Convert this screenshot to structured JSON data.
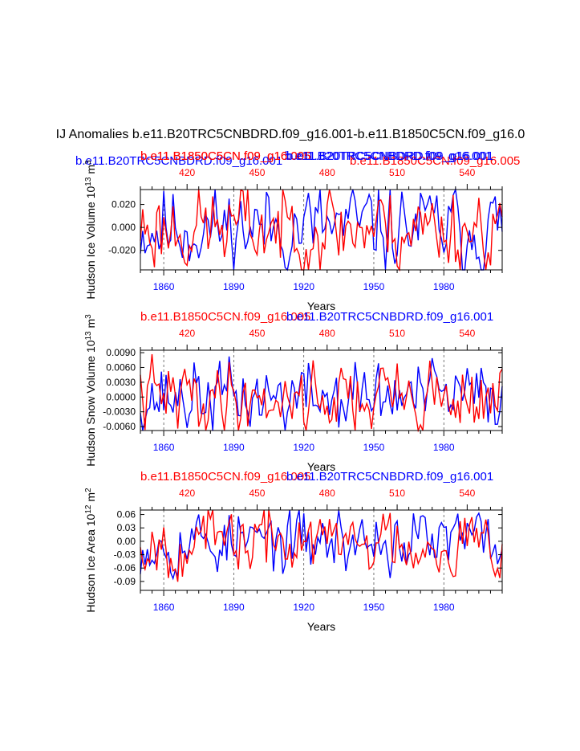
{
  "title": "IJ Anomalies b.e11.B20TRC5CNBDRD.f09_g16.001-b.e11.B1850C5CN.f09_g16.0",
  "legend": {
    "line1_blue": "b.e11.B20TRC5CNBDRD.f09_g16.001",
    "line1_red_a": "b.e11.B1850C5CN.f09_g16.005",
    "line1_blue_b": "b.e11.B20TRC5CNBDRD.f09_g16.001",
    "line2_blue": "b.e11.B20TRC5CNBDRD.f09_g16.001",
    "line2_red": "b.e11.B1850C5CN.f09_g16.005"
  },
  "colors": {
    "blue": "#0000ff",
    "red": "#ff0000",
    "black": "#000000",
    "grid": "#555555"
  },
  "chart_data": [
    {
      "type": "line",
      "name": "hudson-ice-volume",
      "top_label_red": "b.e11.B1850C5CN.f09_g16.005",
      "top_label_blue": "b.e11.B20TRC5CNBDRD.f09_g16.001",
      "ylabel": "Hudson Ice Volume 10",
      "ylabel_exp": "13",
      "ylabel_unit": " m",
      "ylabel_unit_exp": "3",
      "xlabel": "Years",
      "xlim": [
        1850,
        2005
      ],
      "top_xlim": [
        400,
        555
      ],
      "ylim": [
        -0.037,
        0.033
      ],
      "yticks": [
        -0.02,
        0.0,
        0.02
      ],
      "ytick_labels": [
        "-0.020",
        "0.000",
        "0.020"
      ],
      "xticks": [
        1860,
        1890,
        1920,
        1950,
        1980
      ],
      "xtick_labels": [
        "1860",
        "1890",
        "1920",
        "1950",
        "1980"
      ],
      "top_xticks": [
        420,
        450,
        480,
        510,
        540
      ],
      "top_xtick_labels": [
        "420",
        "450",
        "480",
        "510",
        "540"
      ],
      "amplitude": 0.018,
      "series": [
        {
          "name": "b.e11.B20TRC5CNBDRD.f09_g16.001",
          "color": "#0000ff",
          "seed": 11
        },
        {
          "name": "b.e11.B1850C5CN.f09_g16.005",
          "color": "#ff0000",
          "seed": 23
        }
      ]
    },
    {
      "type": "line",
      "name": "hudson-snow-volume",
      "top_label_red": "b.e11.B1850C5CN.f09_g16.005",
      "top_label_blue": "b.e11.B20TRC5CNBDRD.f09_g16.001",
      "ylabel": "Hudson Snow Volume 10",
      "ylabel_exp": "13",
      "ylabel_unit": " m",
      "ylabel_unit_exp": "3",
      "xlabel": "Years",
      "xlim": [
        1850,
        2005
      ],
      "top_xlim": [
        400,
        555
      ],
      "ylim": [
        -0.0068,
        0.0095
      ],
      "yticks": [
        -0.006,
        -0.003,
        0.0,
        0.003,
        0.006,
        0.009
      ],
      "ytick_labels": [
        "-0.0060",
        "-0.0030",
        "0.0000",
        "0.0030",
        "0.0060",
        "0.0090"
      ],
      "xticks": [
        1860,
        1890,
        1920,
        1950,
        1980
      ],
      "xtick_labels": [
        "1860",
        "1890",
        "1920",
        "1950",
        "1980"
      ],
      "top_xticks": [
        420,
        450,
        480,
        510,
        540
      ],
      "top_xtick_labels": [
        "420",
        "450",
        "480",
        "510",
        "540"
      ],
      "amplitude": 0.0035,
      "series": [
        {
          "name": "b.e11.B20TRC5CNBDRD.f09_g16.001",
          "color": "#0000ff",
          "seed": 37
        },
        {
          "name": "b.e11.B1850C5CN.f09_g16.005",
          "color": "#ff0000",
          "seed": 41
        }
      ]
    },
    {
      "type": "line",
      "name": "hudson-ice-area",
      "top_label_red": "b.e11.B1850C5CN.f09_g16.005",
      "top_label_blue": "b.e11.B20TRC5CNBDRD.f09_g16.001",
      "ylabel": "Hudson Ice Area 10",
      "ylabel_exp": "12",
      "ylabel_unit": " m",
      "ylabel_unit_exp": "2",
      "xlabel": "Years",
      "xlim": [
        1850,
        2005
      ],
      "top_xlim": [
        400,
        555
      ],
      "ylim": [
        -0.11,
        0.07
      ],
      "yticks": [
        -0.09,
        -0.06,
        -0.03,
        0.0,
        0.03,
        0.06
      ],
      "ytick_labels": [
        "-0.09",
        "-0.06",
        "-0.03",
        "0.00",
        "0.03",
        "0.06"
      ],
      "xticks": [
        1860,
        1890,
        1920,
        1950,
        1980
      ],
      "xtick_labels": [
        "1860",
        "1890",
        "1920",
        "1950",
        "1980"
      ],
      "top_xticks": [
        420,
        450,
        480,
        510,
        540
      ],
      "top_xtick_labels": [
        "420",
        "450",
        "480",
        "510",
        "540"
      ],
      "amplitude": 0.035,
      "series": [
        {
          "name": "b.e11.B20TRC5CNBDRD.f09_g16.001",
          "color": "#0000ff",
          "seed": 53
        },
        {
          "name": "b.e11.B1850C5CN.f09_g16.005",
          "color": "#ff0000",
          "seed": 67
        }
      ]
    }
  ]
}
